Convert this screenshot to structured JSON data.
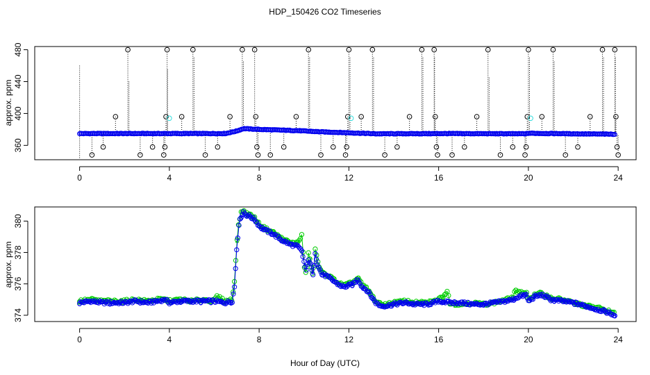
{
  "chart_data": [
    {
      "type": "scatter",
      "title": "HDP_150426  CO2 Timeseries",
      "xlabel": "",
      "ylabel": "approx. ppm",
      "xlim": [
        -2,
        24.8
      ],
      "ylim": [
        342,
        484
      ],
      "xticks": [
        "0",
        "4",
        "8",
        "12",
        "16",
        "20",
        "24"
      ],
      "yticks": [
        "360",
        "400",
        "440",
        "480"
      ],
      "grid": false,
      "colors": {
        "baseline": "#0000ee",
        "outlier": "#000000",
        "highlight": "#33dddd",
        "drop": "#000000"
      },
      "baseline": {
        "x": [
          0,
          6.5,
          7.0,
          7.3,
          8.0,
          9.7,
          10.7,
          12.0,
          13.2,
          15.8,
          16.0,
          19.9,
          20.0,
          22.0,
          23.85
        ],
        "y": [
          374.8,
          374.8,
          378.0,
          381.0,
          380.0,
          378.5,
          377.0,
          375.8,
          374.5,
          374.7,
          374.8,
          374.5,
          375.2,
          374.5,
          374.0
        ]
      },
      "outliers": [
        {
          "x": 0.55,
          "y": 348
        },
        {
          "x": 1.05,
          "y": 358
        },
        {
          "x": 1.6,
          "y": 396
        },
        {
          "x": 2.15,
          "y": 480
        },
        {
          "x": 2.7,
          "y": 348
        },
        {
          "x": 3.25,
          "y": 358
        },
        {
          "x": 3.75,
          "y": 348
        },
        {
          "x": 3.8,
          "y": 358
        },
        {
          "x": 3.85,
          "y": 396
        },
        {
          "x": 3.9,
          "y": 480
        },
        {
          "x": 4.55,
          "y": 396
        },
        {
          "x": 5.05,
          "y": 480
        },
        {
          "x": 5.6,
          "y": 348
        },
        {
          "x": 6.15,
          "y": 358
        },
        {
          "x": 6.7,
          "y": 396
        },
        {
          "x": 7.25,
          "y": 480
        },
        {
          "x": 7.8,
          "y": 480
        },
        {
          "x": 7.85,
          "y": 396
        },
        {
          "x": 7.9,
          "y": 358
        },
        {
          "x": 7.95,
          "y": 348
        },
        {
          "x": 8.5,
          "y": 348
        },
        {
          "x": 9.1,
          "y": 358
        },
        {
          "x": 9.65,
          "y": 396
        },
        {
          "x": 10.2,
          "y": 480
        },
        {
          "x": 10.75,
          "y": 348
        },
        {
          "x": 11.3,
          "y": 358
        },
        {
          "x": 11.85,
          "y": 348
        },
        {
          "x": 11.9,
          "y": 358
        },
        {
          "x": 11.95,
          "y": 396
        },
        {
          "x": 12.0,
          "y": 480
        },
        {
          "x": 12.55,
          "y": 396
        },
        {
          "x": 13.05,
          "y": 480
        },
        {
          "x": 13.6,
          "y": 348
        },
        {
          "x": 14.15,
          "y": 358
        },
        {
          "x": 14.7,
          "y": 396
        },
        {
          "x": 15.25,
          "y": 480
        },
        {
          "x": 15.8,
          "y": 480
        },
        {
          "x": 15.85,
          "y": 396
        },
        {
          "x": 15.9,
          "y": 358
        },
        {
          "x": 15.95,
          "y": 348
        },
        {
          "x": 16.6,
          "y": 348
        },
        {
          "x": 17.15,
          "y": 358
        },
        {
          "x": 17.7,
          "y": 396
        },
        {
          "x": 18.2,
          "y": 480
        },
        {
          "x": 18.75,
          "y": 348
        },
        {
          "x": 19.3,
          "y": 358
        },
        {
          "x": 19.85,
          "y": 348
        },
        {
          "x": 19.9,
          "y": 358
        },
        {
          "x": 19.95,
          "y": 396
        },
        {
          "x": 20.0,
          "y": 480
        },
        {
          "x": 20.6,
          "y": 396
        },
        {
          "x": 21.1,
          "y": 480
        },
        {
          "x": 21.65,
          "y": 348
        },
        {
          "x": 22.2,
          "y": 358
        },
        {
          "x": 22.75,
          "y": 396
        },
        {
          "x": 23.3,
          "y": 480
        },
        {
          "x": 23.85,
          "y": 480
        },
        {
          "x": 23.9,
          "y": 396
        },
        {
          "x": 23.95,
          "y": 358
        },
        {
          "x": 24.0,
          "y": 348
        }
      ],
      "highlights": [
        {
          "x": 4.0,
          "y": 394
        },
        {
          "x": 12.1,
          "y": 394
        },
        {
          "x": 20.1,
          "y": 394
        }
      ],
      "drops": [
        {
          "x": 0.0,
          "y1": 460,
          "y2": 344
        },
        {
          "x": 2.2,
          "y1": 440,
          "y2": 375
        },
        {
          "x": 3.92,
          "y1": 455,
          "y2": 375
        },
        {
          "x": 5.1,
          "y1": 470,
          "y2": 375
        },
        {
          "x": 7.3,
          "y1": 465,
          "y2": 381
        },
        {
          "x": 10.25,
          "y1": 470,
          "y2": 378
        },
        {
          "x": 12.05,
          "y1": 470,
          "y2": 376
        },
        {
          "x": 13.1,
          "y1": 470,
          "y2": 375
        },
        {
          "x": 15.3,
          "y1": 470,
          "y2": 375
        },
        {
          "x": 15.82,
          "y1": 470,
          "y2": 375
        },
        {
          "x": 18.25,
          "y1": 445,
          "y2": 375
        },
        {
          "x": 20.05,
          "y1": 470,
          "y2": 375
        },
        {
          "x": 21.15,
          "y1": 465,
          "y2": 375
        },
        {
          "x": 23.35,
          "y1": 470,
          "y2": 374
        },
        {
          "x": 23.88,
          "y1": 470,
          "y2": 374
        }
      ]
    },
    {
      "type": "line",
      "xlabel": "Hour of Day (UTC)",
      "ylabel": "approx. ppm",
      "xlim": [
        -2,
        24.8
      ],
      "ylim": [
        373.6,
        380.9
      ],
      "xticks": [
        "0",
        "4",
        "8",
        "12",
        "16",
        "20",
        "24"
      ],
      "yticks": [
        "374",
        "376",
        "378",
        "380"
      ],
      "grid": false,
      "colors": {
        "series_3": "#0000ee",
        "series_2": "#00cc00"
      },
      "series": [
        {
          "marker": "3",
          "x": [
            0.0,
            0.5,
            1.0,
            1.5,
            2.0,
            2.5,
            3.0,
            3.5,
            3.8,
            4.0,
            4.5,
            5.0,
            5.5,
            6.0,
            6.5,
            6.8,
            6.9,
            7.0,
            7.1,
            7.2,
            7.3,
            7.4,
            7.6,
            7.8,
            8.0,
            8.3,
            8.6,
            9.0,
            9.4,
            9.7,
            9.9,
            10.0,
            10.1,
            10.2,
            10.3,
            10.4,
            10.5,
            10.6,
            10.7,
            10.8,
            11.0,
            11.2,
            11.4,
            11.6,
            11.8,
            12.0,
            12.2,
            12.4,
            12.6,
            12.8,
            13.0,
            13.2,
            13.4,
            13.7,
            14.0,
            14.5,
            15.0,
            15.5,
            15.8,
            16.0,
            16.5,
            17.0,
            17.5,
            18.0,
            18.5,
            19.0,
            19.3,
            19.6,
            19.9,
            20.0,
            20.3,
            20.6,
            21.0,
            21.5,
            22.0,
            22.5,
            23.0,
            23.5,
            23.85
          ],
          "y": [
            374.8,
            374.9,
            374.8,
            374.8,
            374.8,
            374.9,
            374.8,
            374.9,
            375.0,
            374.8,
            374.9,
            374.9,
            374.9,
            374.9,
            374.8,
            374.9,
            375.8,
            378.2,
            379.8,
            380.3,
            380.6,
            380.4,
            380.3,
            380.1,
            379.7,
            379.4,
            379.2,
            378.8,
            378.5,
            378.4,
            378.1,
            377.4,
            376.8,
            377.6,
            377.2,
            376.5,
            378.0,
            377.3,
            376.9,
            376.6,
            376.5,
            376.3,
            376.1,
            375.9,
            375.8,
            375.9,
            376.0,
            376.3,
            375.8,
            375.6,
            375.2,
            374.8,
            374.6,
            374.6,
            374.7,
            374.8,
            374.7,
            374.7,
            374.8,
            374.9,
            374.8,
            374.8,
            374.7,
            374.7,
            374.8,
            374.9,
            375.0,
            375.2,
            375.3,
            374.9,
            375.2,
            375.3,
            375.0,
            374.9,
            374.8,
            374.6,
            374.4,
            374.2,
            374.0
          ]
        },
        {
          "marker": "2",
          "x": [
            0.0,
            0.5,
            1.0,
            1.5,
            2.0,
            2.5,
            3.0,
            3.5,
            3.8,
            4.0,
            4.5,
            5.0,
            5.5,
            6.0,
            6.1,
            6.5,
            6.8,
            6.9,
            7.0,
            7.1,
            7.2,
            7.3,
            7.4,
            7.6,
            7.8,
            8.0,
            8.3,
            8.6,
            9.0,
            9.4,
            9.7,
            9.9,
            10.0,
            10.1,
            10.2,
            10.3,
            10.4,
            10.5,
            10.6,
            10.7,
            10.8,
            11.0,
            11.2,
            11.4,
            11.6,
            11.8,
            12.0,
            12.2,
            12.4,
            12.6,
            12.8,
            13.0,
            13.2,
            13.4,
            13.7,
            14.0,
            14.5,
            15.0,
            15.5,
            15.8,
            16.0,
            16.4,
            16.5,
            17.0,
            17.5,
            18.0,
            18.5,
            19.0,
            19.3,
            19.4,
            19.6,
            19.9,
            20.0,
            20.3,
            20.6,
            21.0,
            21.5,
            22.0,
            22.5,
            23.0,
            23.5,
            23.85
          ],
          "y": [
            374.9,
            375.0,
            374.9,
            374.9,
            374.9,
            375.0,
            374.9,
            375.0,
            375.0,
            374.9,
            375.0,
            374.9,
            375.0,
            374.9,
            375.2,
            374.9,
            375.0,
            376.2,
            378.5,
            380.0,
            380.5,
            380.7,
            380.5,
            380.4,
            380.2,
            379.8,
            379.5,
            379.3,
            378.9,
            378.6,
            378.6,
            379.1,
            377.2,
            376.6,
            377.9,
            377.3,
            376.4,
            378.2,
            377.5,
            377.0,
            376.7,
            376.6,
            376.4,
            376.2,
            376.0,
            375.9,
            376.0,
            376.1,
            376.4,
            375.9,
            375.7,
            375.3,
            374.9,
            374.7,
            374.7,
            374.8,
            374.9,
            374.8,
            374.8,
            374.9,
            375.0,
            375.5,
            374.8,
            374.7,
            374.8,
            374.7,
            374.8,
            375.0,
            375.1,
            375.6,
            375.4,
            375.5,
            375.0,
            375.3,
            375.4,
            375.1,
            375.0,
            374.8,
            374.6,
            374.5,
            374.3,
            374.1
          ]
        }
      ]
    }
  ]
}
